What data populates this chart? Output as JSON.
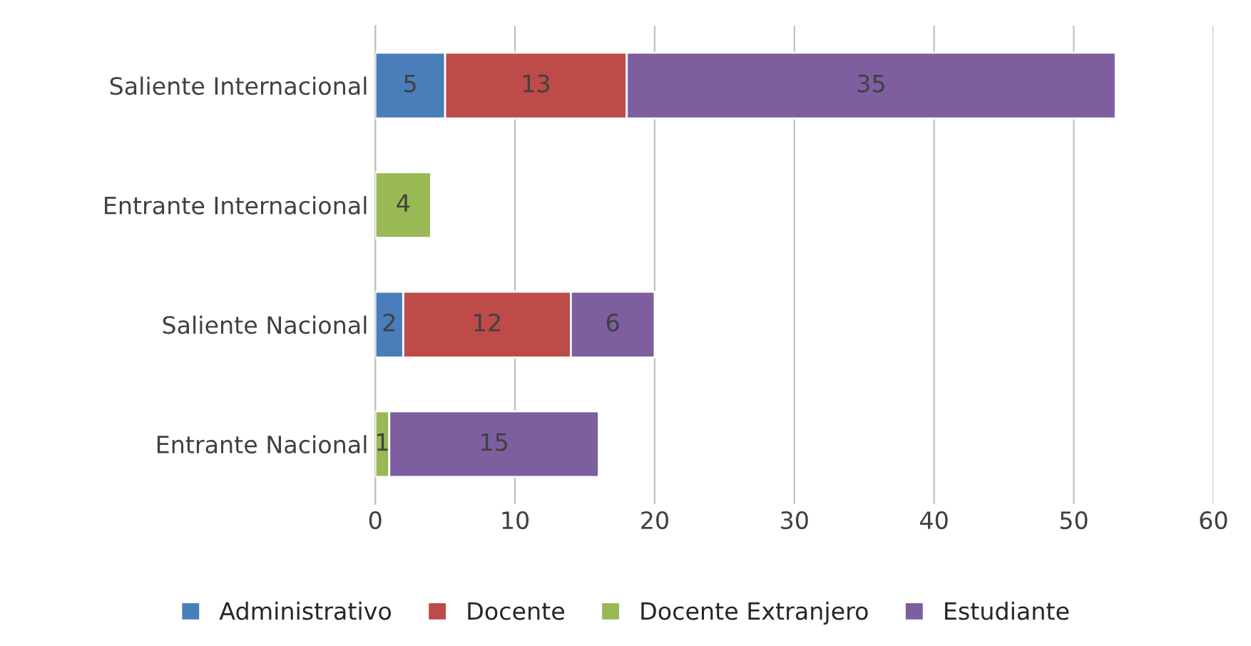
{
  "chart_data": {
    "type": "bar",
    "orientation": "horizontal",
    "stacked": true,
    "data_labels": true,
    "categories": [
      "Saliente Internacional",
      "Entrante Internacional",
      "Saliente Nacional",
      "Entrante Nacional"
    ],
    "series": [
      {
        "name": "Administrativo",
        "color": "#4a7ebb",
        "values": [
          5,
          null,
          2,
          null
        ]
      },
      {
        "name": "Docente",
        "color": "#be4b48",
        "values": [
          13,
          null,
          12,
          null
        ]
      },
      {
        "name": "Docente Extranjero",
        "color": "#98b954",
        "values": [
          null,
          4,
          null,
          1
        ]
      },
      {
        "name": "Estudiante",
        "color": "#7d5fa0",
        "values": [
          35,
          null,
          6,
          15
        ]
      }
    ],
    "xlim": [
      0,
      60
    ],
    "xticks": [
      0,
      10,
      20,
      30,
      40,
      50,
      60
    ],
    "grid": "x",
    "legend": "bottom"
  }
}
